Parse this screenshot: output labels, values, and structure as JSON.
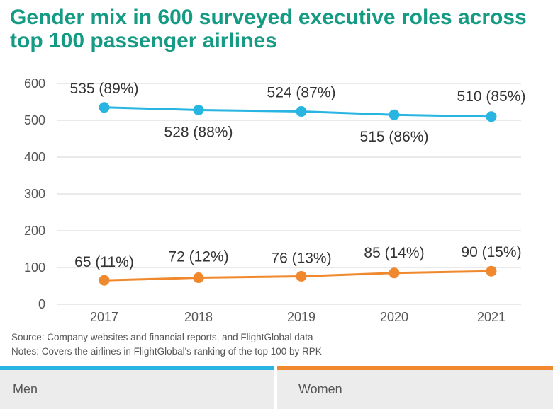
{
  "title": "Gender mix in 600 surveyed executive roles across top 100 passenger airlines",
  "source": "Source: Company websites and financial reports, and FlightGlobal data",
  "notes": "Notes: Covers the airlines in FlightGlobal's ranking of the top 100 by RPK",
  "colors": {
    "men": "#29b5e2",
    "women": "#f0882d",
    "title": "#159a84",
    "grid": "#d6d6d6"
  },
  "legend": [
    "Men",
    "Women"
  ],
  "chart_data": {
    "type": "line",
    "title": "Gender mix in 600 surveyed executive roles across top 100 passenger airlines",
    "x": [
      "2017",
      "2018",
      "2019",
      "2020",
      "2021"
    ],
    "ylim": [
      0,
      600
    ],
    "yticks": [
      0,
      100,
      200,
      300,
      400,
      500,
      600
    ],
    "grid": true,
    "legend_position": "bottom",
    "series": [
      {
        "name": "Men",
        "values": [
          535,
          528,
          524,
          515,
          510
        ],
        "labels": [
          "535 (89%)",
          "528 (88%)",
          "524 (87%)",
          "515 (86%)",
          "510 (85%)"
        ]
      },
      {
        "name": "Women",
        "values": [
          65,
          72,
          76,
          85,
          90
        ],
        "labels": [
          "65 (11%)",
          "72 (12%)",
          "76 (13%)",
          "85 (14%)",
          "90 (15%)"
        ]
      }
    ]
  }
}
